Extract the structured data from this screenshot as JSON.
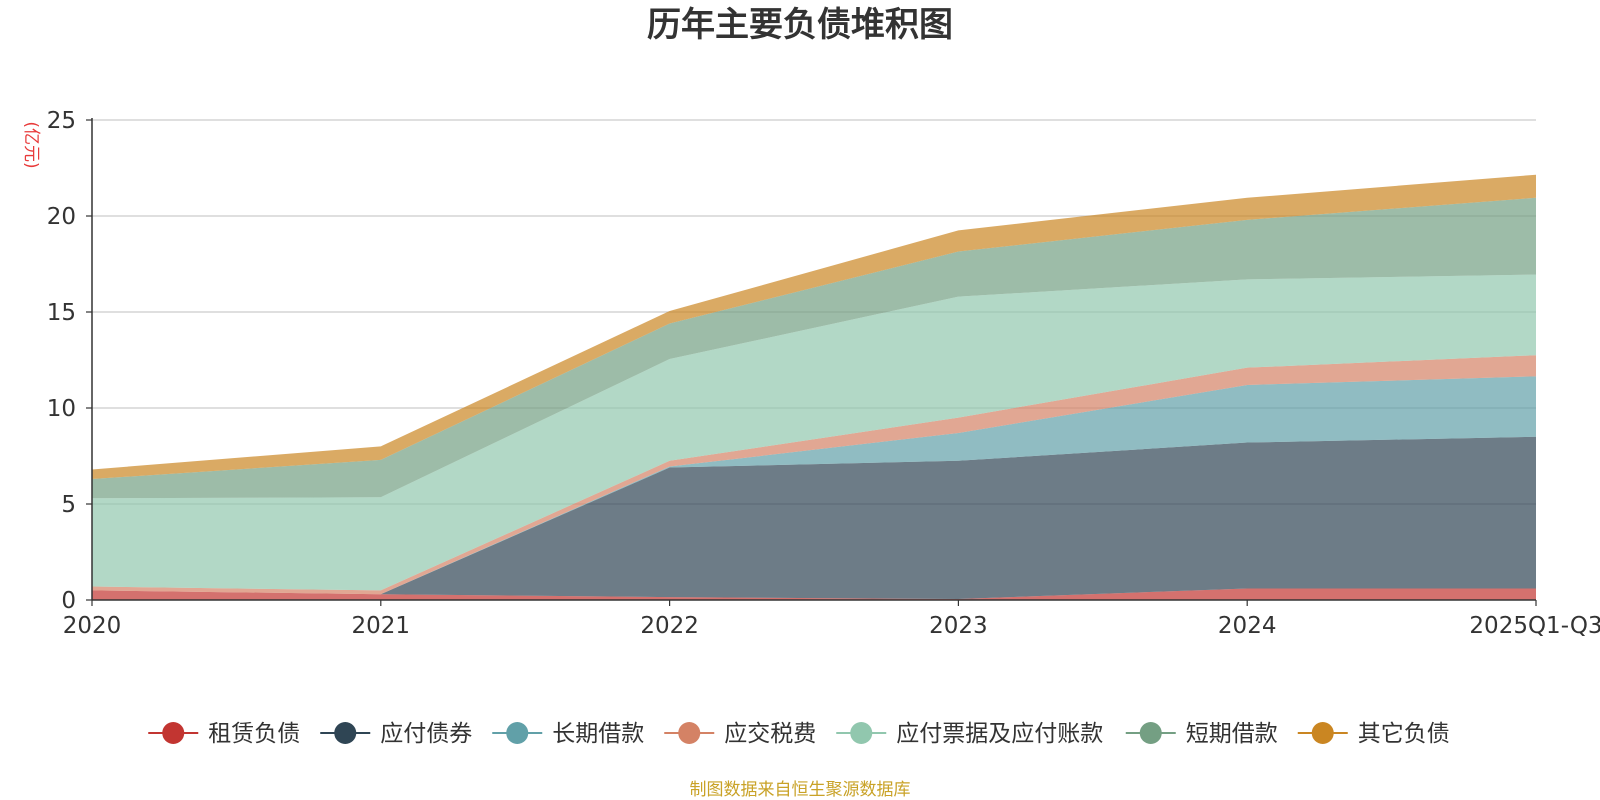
{
  "chart_data": {
    "type": "area",
    "stacked": true,
    "title": "历年主要负债堆积图",
    "unit": "(亿元)",
    "categories": [
      "2020",
      "2021",
      "2022",
      "2023",
      "2024",
      "2025Q1-Q3"
    ],
    "ylim": [
      0,
      25
    ],
    "y_ticks": [
      0,
      5,
      10,
      15,
      20,
      25
    ],
    "grid": true,
    "legend_position": "bottom",
    "series": [
      {
        "name": "租赁负债",
        "color": "#c23531",
        "values": [
          0.5,
          0.3,
          0.15,
          0.05,
          0.6,
          0.6
        ]
      },
      {
        "name": "应付债券",
        "color": "#2f4554",
        "values": [
          0,
          0,
          6.75,
          7.2,
          7.6,
          7.9
        ]
      },
      {
        "name": "长期借款",
        "color": "#61a0a8",
        "values": [
          0,
          0,
          0.05,
          1.45,
          3.0,
          3.15
        ]
      },
      {
        "name": "应交税费",
        "color": "#d48265",
        "values": [
          0.2,
          0.2,
          0.3,
          0.8,
          0.9,
          1.1
        ]
      },
      {
        "name": "应付票据及应付账款",
        "color": "#91c7ae",
        "values": [
          4.6,
          4.85,
          5.3,
          6.3,
          4.6,
          4.2
        ]
      },
      {
        "name": "短期借款",
        "color": "#749f83",
        "values": [
          1.0,
          1.95,
          1.85,
          2.35,
          3.1,
          4.0
        ]
      },
      {
        "name": "其它负债",
        "color": "#ca8622",
        "values": [
          0.5,
          0.7,
          0.65,
          1.1,
          1.15,
          1.2
        ]
      }
    ],
    "source": "制图数据来自恒生聚源数据库"
  }
}
